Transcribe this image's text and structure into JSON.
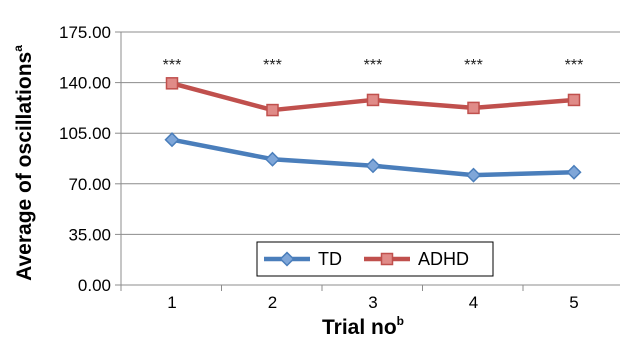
{
  "chart_data": {
    "type": "line",
    "categories": [
      "1",
      "2",
      "3",
      "4",
      "5"
    ],
    "series": [
      {
        "name": "TD",
        "values": [
          100.5,
          87.0,
          82.5,
          76.0,
          78.0
        ],
        "color": "#4a7ebb",
        "marker": "diamond"
      },
      {
        "name": "ADHD",
        "values": [
          139.5,
          121.0,
          128.0,
          122.5,
          128.0
        ],
        "color": "#c0504d",
        "marker": "square"
      }
    ],
    "annotations": [
      "***",
      "***",
      "***",
      "***",
      "***"
    ],
    "xlabel": "Trial no",
    "xlabel_sup": "b",
    "ylabel": "Average of oscillations",
    "ylabel_sup": "a",
    "yticks": [
      "0.00",
      "35.00",
      "70.00",
      "105.00",
      "140.00",
      "175.00"
    ],
    "ylim": [
      0,
      175
    ],
    "grid": true,
    "legend_position": "bottom-center"
  }
}
